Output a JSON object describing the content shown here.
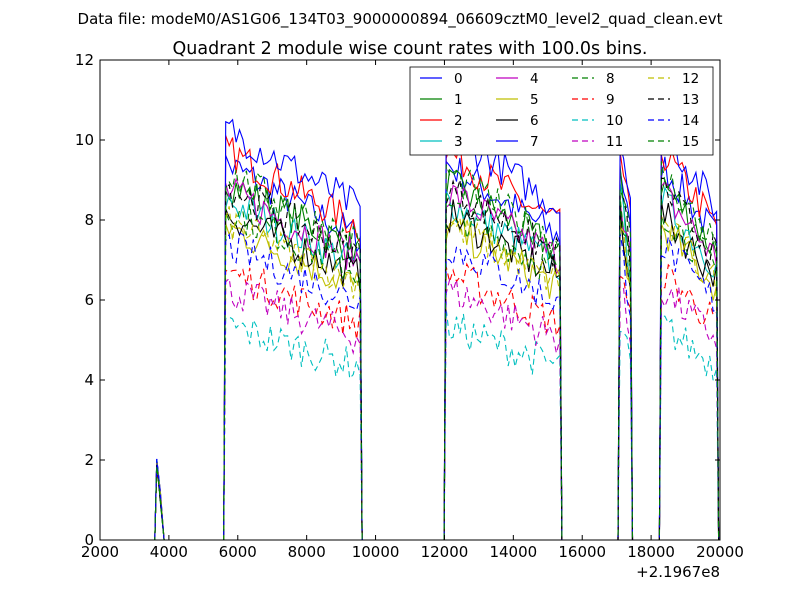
{
  "chart_data": {
    "type": "line",
    "suptitle": "Data file: modeM0/AS1G06_134T03_9000000894_06609cztM0_level2_quad_clean.evt",
    "title": "Quadrant 2 module wise count rates with 100.0s bins.",
    "xlabel": "",
    "ylabel": "",
    "x_offset_label": "+2.1967e8",
    "xlim": [
      2000,
      20000
    ],
    "ylim": [
      0,
      12
    ],
    "xticks": [
      2000,
      4000,
      6000,
      8000,
      10000,
      12000,
      14000,
      16000,
      18000,
      20000
    ],
    "xtick_labels": [
      "2000",
      "4000",
      "6000",
      "8000",
      "10000",
      "12000",
      "14000",
      "16000",
      "18000",
      "20000"
    ],
    "yticks": [
      0,
      2,
      4,
      6,
      8,
      10,
      12
    ],
    "ytick_labels": [
      "0",
      "2",
      "4",
      "6",
      "8",
      "10",
      "12"
    ],
    "legend_position": "top-right",
    "legend_columns": 4,
    "series": [
      {
        "name": "0",
        "color": "#0000ff",
        "dashed": false,
        "level": 8.4
      },
      {
        "name": "1",
        "color": "#008000",
        "dashed": false,
        "level": 8.0
      },
      {
        "name": "2",
        "color": "#ff0000",
        "dashed": false,
        "level": 8.7
      },
      {
        "name": "3",
        "color": "#00bfbf",
        "dashed": false,
        "level": 7.6
      },
      {
        "name": "4",
        "color": "#bf00bf",
        "dashed": false,
        "level": 7.8
      },
      {
        "name": "5",
        "color": "#bfbf00",
        "dashed": false,
        "level": 7.0
      },
      {
        "name": "6",
        "color": "#000000",
        "dashed": false,
        "level": 7.3
      },
      {
        "name": "7",
        "color": "#0000ff",
        "dashed": false,
        "level": 9.2
      },
      {
        "name": "8",
        "color": "#008000",
        "dashed": true,
        "level": 7.4
      },
      {
        "name": "9",
        "color": "#ff0000",
        "dashed": true,
        "level": 6.0
      },
      {
        "name": "10",
        "color": "#00bfbf",
        "dashed": true,
        "level": 4.8
      },
      {
        "name": "11",
        "color": "#bf00bf",
        "dashed": true,
        "level": 5.6
      },
      {
        "name": "12",
        "color": "#bfbf00",
        "dashed": true,
        "level": 7.1
      },
      {
        "name": "13",
        "color": "#000000",
        "dashed": true,
        "level": 7.9
      },
      {
        "name": "14",
        "color": "#0000ff",
        "dashed": true,
        "level": 6.6
      },
      {
        "name": "15",
        "color": "#008000",
        "dashed": true,
        "level": 8.2
      }
    ],
    "segments": [
      {
        "start": 3650,
        "end": 3800,
        "scale": 0.22
      },
      {
        "start": 5650,
        "end": 9550,
        "scale": 1.0
      },
      {
        "start": 12050,
        "end": 15350,
        "scale": 1.0
      },
      {
        "start": 17100,
        "end": 17400,
        "scale": 1.0
      },
      {
        "start": 18300,
        "end": 19900,
        "scale": 1.0
      }
    ]
  }
}
